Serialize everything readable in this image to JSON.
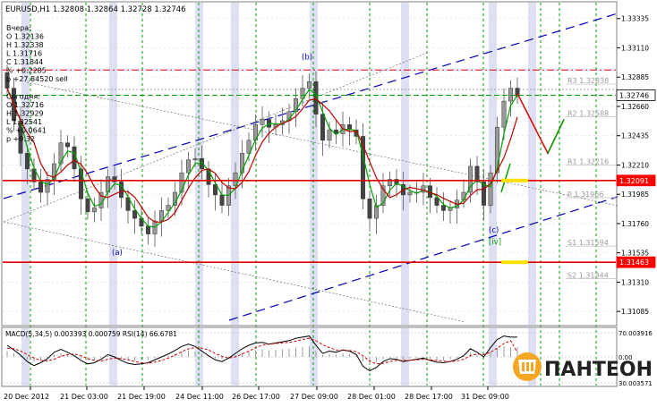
{
  "chart_data": {
    "type": "candlestick",
    "title": "EURUSD,H1  1.32808 1.32864 1.32728 1.32746",
    "info_panel": [
      "Вчера:",
      "O 1.32136",
      "H 1.32338",
      "L 1.31716",
      "C 1.31844",
      "% +0.2285",
      "p +27.84520 sell",
      "Сегодня:",
      "O 1.32716",
      "H 1.32929",
      "L 1.32541",
      "% +0.0641",
      "p +9.32"
    ],
    "price_axis": {
      "ylim": [
        1.3099,
        1.3345
      ],
      "ticks": [
        "1.33335",
        "1.33110",
        "1.32885",
        "1.32660",
        "1.32435",
        "1.32210",
        "1.31985",
        "1.31760",
        "1.31535",
        "1.31310",
        "1.31085"
      ]
    },
    "price_badges": [
      {
        "label": "1.32746",
        "value": 1.32746,
        "bg": "#ffffff",
        "fg": "#000000"
      },
      {
        "label": "1.32091",
        "value": 1.32091,
        "bg": "#ff0000",
        "fg": "#ffffff"
      },
      {
        "label": "1.31463",
        "value": 1.31463,
        "bg": "#ff0000",
        "fg": "#ffffff"
      }
    ],
    "pivot_levels": [
      {
        "label": "R3",
        "value": "1.32838",
        "price": 1.32838
      },
      {
        "label": "R2",
        "value": "1.32588",
        "price": 1.32588
      },
      {
        "label": "R1",
        "value": "1.32216",
        "price": 1.32216
      },
      {
        "label": "P",
        "value": "1.31966",
        "price": 1.31966
      },
      {
        "label": "S1",
        "value": "1.31594",
        "price": 1.31594
      },
      {
        "label": "S2",
        "value": "1.31344",
        "price": 1.31344
      }
    ],
    "wave_labels": [
      {
        "text": "(a)",
        "price": 1.3152
      },
      {
        "text": "(b)",
        "price": 1.3302
      },
      {
        "text": "(c)",
        "price": 1.3169
      },
      {
        "text": "[iv]",
        "price": 1.316
      }
    ],
    "x_labels": [
      "20 Dec 2012",
      "21 Dec 03:00",
      "21 Dec 19:00",
      "24 Dec 11:00",
      "26 Dec 17:00",
      "27 Dec 09:00",
      "28 Dec 01:00",
      "28 Dec 17:00",
      "31 Dec 09:00"
    ],
    "close": [
      1.328,
      1.3255,
      1.323,
      1.3218,
      1.3208,
      1.32,
      1.321,
      1.3222,
      1.3238,
      1.3235,
      1.3218,
      1.3195,
      1.3185,
      1.3188,
      1.32,
      1.3212,
      1.3208,
      1.3196,
      1.3186,
      1.318,
      1.3174,
      1.3168,
      1.3178,
      1.3186,
      1.319,
      1.32,
      1.3215,
      1.3225,
      1.3226,
      1.3218,
      1.3206,
      1.3198,
      1.319,
      1.3205,
      1.3215,
      1.323,
      1.324,
      1.3252,
      1.3256,
      1.325,
      1.3252,
      1.3255,
      1.3262,
      1.3272,
      1.328,
      1.3285,
      1.326,
      1.324,
      1.3248,
      1.3245,
      1.3252,
      1.3248,
      1.3243,
      1.3195,
      1.318,
      1.319,
      1.3205,
      1.321,
      1.3206,
      1.3198,
      1.32,
      1.32,
      1.3205,
      1.3196,
      1.319,
      1.3186,
      1.3188,
      1.3194,
      1.32,
      1.322,
      1.3208,
      1.319,
      1.3215,
      1.325,
      1.327,
      1.328,
      1.3274
    ],
    "projection": [
      [
        1.3274,
        1.3276
      ],
      [
        1.3274,
        1.3278
      ],
      [
        1.3274,
        1.3248
      ],
      [
        1.3274,
        1.323
      ],
      [
        1.3274,
        1.3255
      ]
    ],
    "indicator_panel": {
      "title": "MACD(5,34,5) 0.003393 0.000759  RSI(14) 66.6781",
      "ticks": [
        "70.003916",
        "0.00",
        "30.003571"
      ],
      "macd_line": [
        0.002,
        0.0012,
        0.0003,
        -0.0008,
        -0.0015,
        -0.001,
        -0.0003,
        0.0008,
        0.0013,
        0.0008,
        0.0002,
        -0.0006,
        -0.0012,
        -0.001,
        -0.0004,
        0.0004,
        0.0,
        -0.0006,
        -0.0011,
        -0.0013,
        -0.0012,
        -0.001,
        -0.0005,
        0.0,
        0.0005,
        0.0011,
        0.0018,
        0.0022,
        0.0018,
        0.001,
        0.0002,
        -0.0005,
        -0.0008,
        -0.0002,
        0.0006,
        0.0014,
        0.002,
        0.0024,
        0.0025,
        0.0022,
        0.0024,
        0.0026,
        0.0028,
        0.0032,
        0.0034,
        0.0036,
        0.002,
        0.0006,
        0.001,
        0.0008,
        0.0012,
        0.001,
        0.0004,
        -0.0016,
        -0.0024,
        -0.0018,
        -0.0008,
        -0.0003,
        -0.0004,
        -0.0008,
        -0.0006,
        -0.0004,
        -0.0002,
        -0.0006,
        -0.0009,
        -0.001,
        -0.0008,
        -0.0004,
        0.0002,
        0.0014,
        0.0008,
        0.0,
        0.0016,
        0.003,
        0.0036,
        0.0034,
        0.0034
      ],
      "signal_line": [
        0.0015,
        0.0014,
        0.001,
        0.0004,
        -0.0002,
        -0.0006,
        -0.0007,
        -0.0004,
        0.0001,
        0.0004,
        0.0005,
        0.0002,
        -0.0003,
        -0.0006,
        -0.0007,
        -0.0004,
        -0.0002,
        -0.0003,
        -0.0005,
        -0.0008,
        -0.001,
        -0.0011,
        -0.0009,
        -0.0006,
        -0.0002,
        0.0003,
        0.0009,
        0.0014,
        0.0016,
        0.0015,
        0.0012,
        0.0006,
        0.0001,
        -0.0002,
        0.0,
        0.0005,
        0.001,
        0.0016,
        0.002,
        0.0022,
        0.0023,
        0.0024,
        0.0025,
        0.0027,
        0.003,
        0.0032,
        0.0028,
        0.0021,
        0.0016,
        0.0012,
        0.0011,
        0.0011,
        0.0009,
        0.0002,
        -0.0007,
        -0.0012,
        -0.0011,
        -0.0008,
        -0.0006,
        -0.0006,
        -0.0006,
        -0.0005,
        -0.0004,
        -0.0005,
        -0.0006,
        -0.0007,
        -0.0008,
        -0.0007,
        -0.0004,
        0.0002,
        0.0005,
        0.0004,
        0.0008,
        0.0015,
        0.0023,
        0.0028,
        0.0008
      ]
    }
  },
  "logo": {
    "text": "ПАНТЕОН"
  }
}
